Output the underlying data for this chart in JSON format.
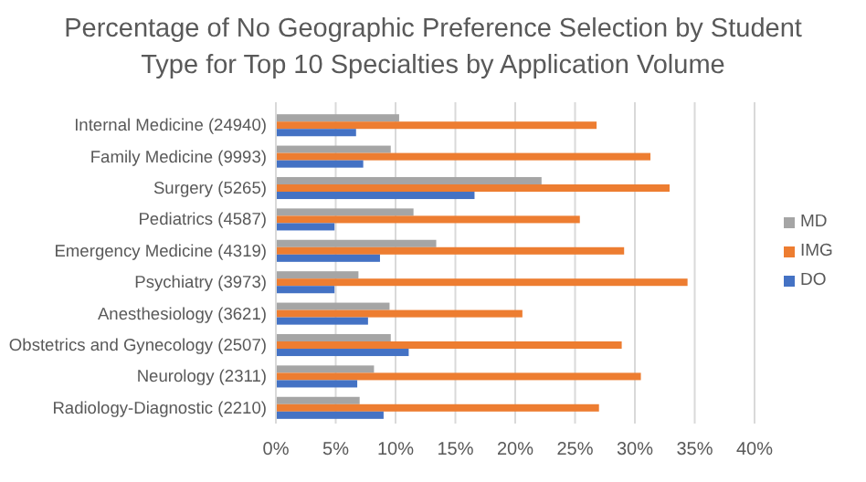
{
  "chart_data": {
    "type": "bar",
    "orientation": "horizontal",
    "title": "Percentage of No Geographic Preference Selection by Student Type for Top 10 Specialties by Application Volume",
    "categories": [
      "Internal Medicine (24940)",
      "Family Medicine (9993)",
      "Surgery (5265)",
      "Pediatrics (4587)",
      "Emergency Medicine (4319)",
      "Psychiatry (3973)",
      "Anesthesiology (3621)",
      "Obstetrics and Gynecology (2507)",
      "Neurology (2311)",
      "Radiology-Diagnostic (2210)"
    ],
    "series": [
      {
        "name": "MD",
        "color": "#a5a5a5",
        "values": [
          10.3,
          9.6,
          22.2,
          11.5,
          13.4,
          6.9,
          9.5,
          9.6,
          8.2,
          7.0
        ]
      },
      {
        "name": "IMG",
        "color": "#ed7d31",
        "values": [
          26.8,
          31.3,
          32.9,
          25.4,
          29.1,
          34.4,
          20.6,
          28.9,
          30.5,
          27.0
        ]
      },
      {
        "name": "DO",
        "color": "#4472c4",
        "values": [
          6.7,
          7.3,
          16.6,
          4.9,
          8.7,
          4.9,
          7.7,
          11.1,
          6.8,
          9.0
        ]
      }
    ],
    "xlim": [
      0,
      40
    ],
    "xticks": [
      {
        "value": 0,
        "label": "0%"
      },
      {
        "value": 5,
        "label": "5%"
      },
      {
        "value": 10,
        "label": "10%"
      },
      {
        "value": 15,
        "label": "15%"
      },
      {
        "value": 20,
        "label": "20%"
      },
      {
        "value": 25,
        "label": "25%"
      },
      {
        "value": 30,
        "label": "30%"
      },
      {
        "value": 35,
        "label": "35%"
      },
      {
        "value": 40,
        "label": "40%"
      }
    ],
    "grid": "x",
    "legend": "right"
  }
}
